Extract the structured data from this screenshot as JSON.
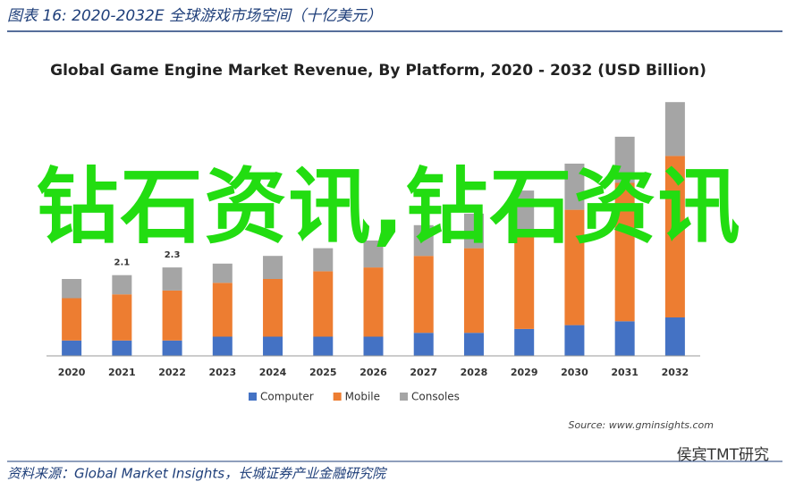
{
  "header": "图表 16:  2020-2032E 全球游戏市场空间（十亿美元）",
  "footer": "资料来源：Global Market Insights，长城证券产业金融研究院",
  "watermark": "侯宾TMT研究",
  "overlay_text": "钻石资讯,钻石资讯",
  "chart_data": {
    "type": "stacked_bar",
    "title": "Global Game Engine Market Revenue, By Platform, 2020 - 2032 (USD Billion)",
    "source": "Source: www.gminsights.com",
    "categories": [
      "2020",
      "2021",
      "2022",
      "2023",
      "2024",
      "2025",
      "2026",
      "2027",
      "2028",
      "2029",
      "2030",
      "2031",
      "2032"
    ],
    "series": [
      {
        "name": "Computer",
        "color": "#4472c4",
        "values": [
          0.4,
          0.4,
          0.4,
          0.5,
          0.5,
          0.5,
          0.5,
          0.6,
          0.6,
          0.7,
          0.8,
          0.9,
          1.0
        ]
      },
      {
        "name": "Mobile",
        "color": "#ed7d31",
        "values": [
          1.1,
          1.2,
          1.3,
          1.4,
          1.5,
          1.7,
          1.8,
          2.0,
          2.2,
          2.6,
          3.0,
          3.6,
          4.2
        ]
      },
      {
        "name": "Consoles",
        "color": "#a5a5a5",
        "values": [
          0.5,
          0.5,
          0.6,
          0.5,
          0.6,
          0.6,
          0.7,
          0.8,
          0.9,
          1.0,
          1.2,
          1.2,
          1.4
        ]
      }
    ],
    "annotations": [
      {
        "category": "2021",
        "text": "2.1"
      },
      {
        "category": "2022",
        "text": "2.3"
      }
    ],
    "ylim": [
      0,
      7
    ],
    "legend": "bottom"
  }
}
